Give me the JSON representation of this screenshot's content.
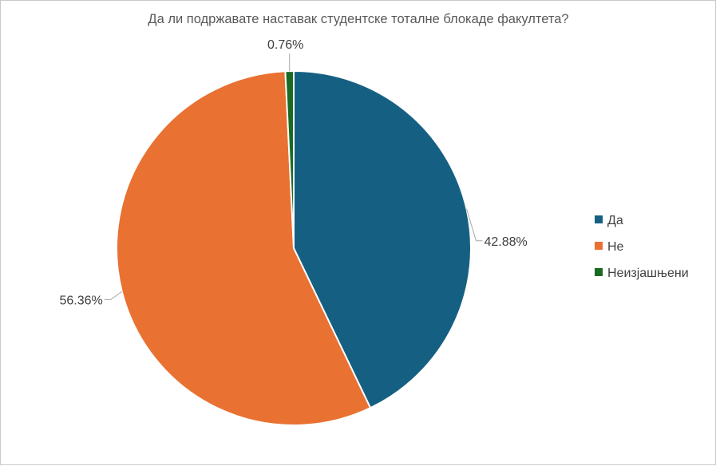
{
  "chart_data": {
    "type": "pie",
    "title": "Да ли подржавате наставак студентске тоталне блокаде факултета?",
    "slices": [
      {
        "label": "Да",
        "value": 42.88,
        "display": "42.88%",
        "color": "#156082"
      },
      {
        "label": "Не",
        "value": 56.36,
        "display": "56.36%",
        "color": "#E97132"
      },
      {
        "label": "Неизјашњени",
        "value": 0.76,
        "display": "0.76%",
        "color": "#196B24"
      }
    ],
    "legend_position": "right"
  }
}
